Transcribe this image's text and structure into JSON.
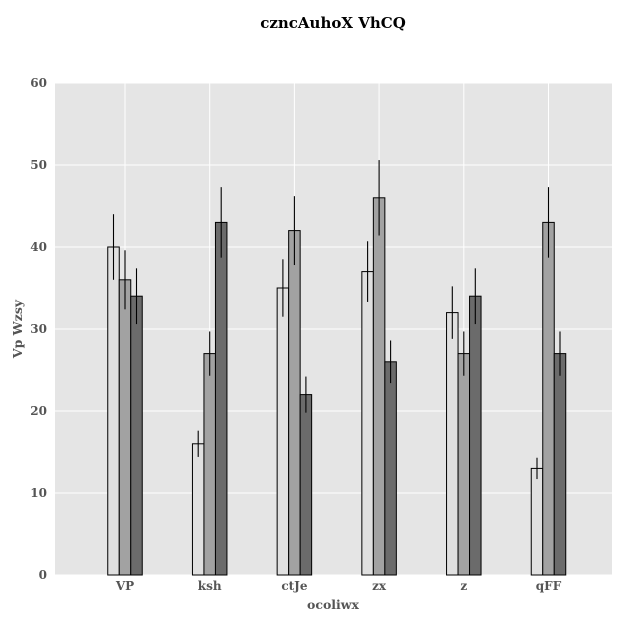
{
  "chart_data": {
    "type": "bar",
    "title": "czncAuhoX VhCQ",
    "xlabel": "ocoliwx",
    "ylabel": "Vp Wzsy",
    "categories": [
      "VP",
      "ksh",
      "ctJe",
      "zx",
      "z",
      "qFF"
    ],
    "ylim": [
      0,
      60
    ],
    "yticks": [
      0,
      10,
      20,
      30,
      40,
      50,
      60
    ],
    "grid": true,
    "legend": "none",
    "background_color": "#e5e5e5",
    "grid_color": "#ffffff",
    "series": [
      {
        "color": "#e0e0e0",
        "values": [
          40,
          16,
          35,
          37,
          32,
          13
        ],
        "errors": [
          4,
          1.6,
          3.5,
          3.7,
          3.2,
          1.3
        ]
      },
      {
        "color": "#a2a2a2",
        "values": [
          36,
          27,
          42,
          46,
          27,
          43
        ],
        "errors": [
          3.6,
          2.7,
          4.2,
          4.6,
          2.7,
          4.3
        ]
      },
      {
        "color": "#6b6b6b",
        "values": [
          34,
          43,
          22,
          26,
          34,
          27
        ],
        "errors": [
          3.4,
          4.3,
          2.2,
          2.6,
          3.4,
          2.7
        ]
      }
    ]
  }
}
